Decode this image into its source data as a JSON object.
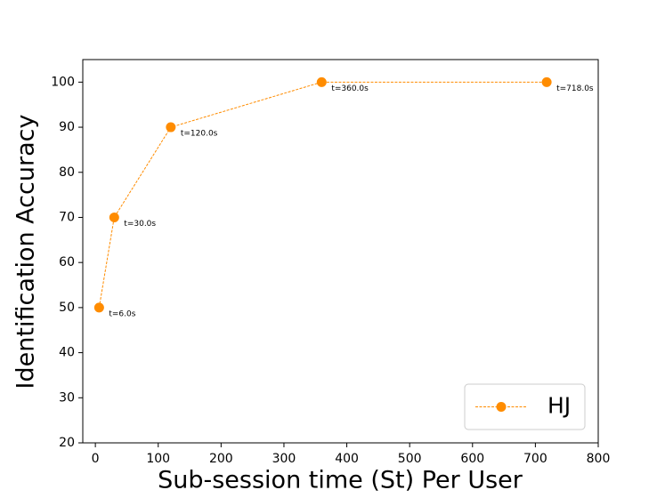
{
  "chart_data": {
    "type": "line",
    "xlabel": "Sub-session time (St) Per User",
    "ylabel": "Identification Accuracy",
    "x": [
      6,
      30,
      120,
      360,
      718
    ],
    "series": [
      {
        "name": "HJ",
        "color": "#ff8c00",
        "values": [
          50,
          70,
          90,
          100,
          100
        ],
        "annotations": [
          "t=6.0s",
          "t=30.0s",
          "t=120.0s",
          "t=360.0s",
          "t=718.0s"
        ]
      }
    ],
    "xlim": [
      -20,
      800
    ],
    "xticks": [
      0,
      100,
      200,
      300,
      400,
      500,
      600,
      700,
      800
    ],
    "ylim": [
      20,
      105
    ],
    "yticks": [
      20,
      30,
      40,
      50,
      60,
      70,
      80,
      90,
      100
    ],
    "grid": false,
    "legend": "lower right",
    "linestyle": "dashed",
    "marker": "circle"
  }
}
